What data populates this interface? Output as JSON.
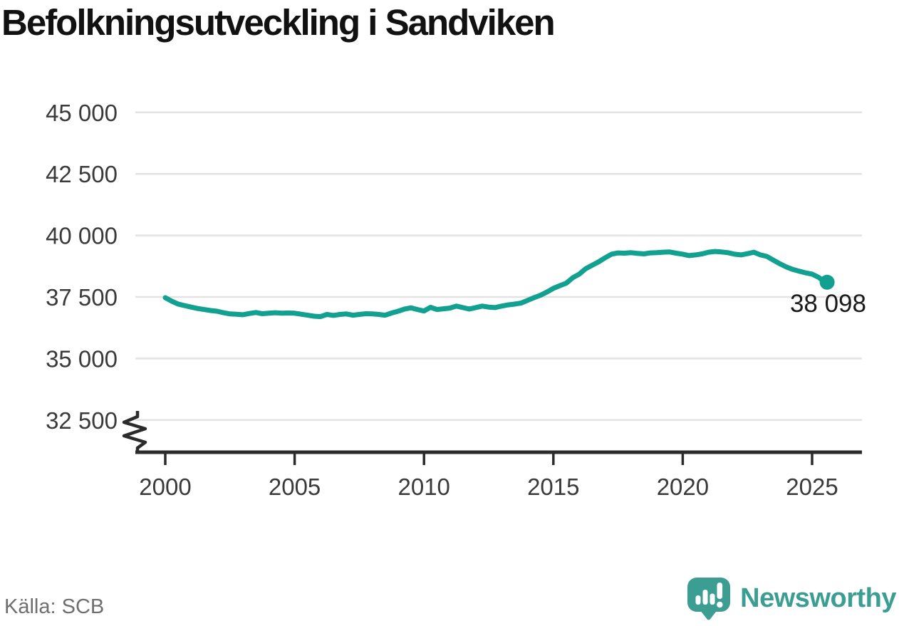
{
  "title": "Befolkningsutveckling i Sandviken",
  "source": "Källa: SCB",
  "logo": {
    "text": "Newsworthy"
  },
  "colors": {
    "line": "#12A091",
    "grid": "#E3E3E3",
    "axis": "#2B2B2B",
    "tick_label": "#3A3A3A",
    "title": "#111111",
    "source": "#6E6E6E",
    "logo": "#3C9D92",
    "end_label": "#1A1A1A"
  },
  "chart_data": {
    "type": "line",
    "title": "Befolkningsutveckling i Sandviken",
    "xlabel": "",
    "ylabel": "",
    "legend_position": "none",
    "grid": "horizontal",
    "y_axis_break": true,
    "x_ticks": [
      {
        "v": 2000,
        "label": "2000"
      },
      {
        "v": 2005,
        "label": "2005"
      },
      {
        "v": 2010,
        "label": "2010"
      },
      {
        "v": 2015,
        "label": "2015"
      },
      {
        "v": 2020,
        "label": "2020"
      },
      {
        "v": 2025,
        "label": "2025"
      }
    ],
    "y_ticks": [
      {
        "v": 45000,
        "label": "45 000"
      },
      {
        "v": 42500,
        "label": "42 500"
      },
      {
        "v": 40000,
        "label": "40 000"
      },
      {
        "v": 37500,
        "label": "37 500"
      },
      {
        "v": 35000,
        "label": "35 000"
      },
      {
        "v": 32500,
        "label": "32 500"
      }
    ],
    "x_range": [
      2000,
      2025.58
    ],
    "y_range_displayed": [
      32500,
      45000
    ],
    "end_label": "38 098",
    "end_value": 38098,
    "series": [
      {
        "name": "Befolkning",
        "points": [
          [
            2000.0,
            37470
          ],
          [
            2000.25,
            37330
          ],
          [
            2000.5,
            37210
          ],
          [
            2000.75,
            37150
          ],
          [
            2001.0,
            37090
          ],
          [
            2001.25,
            37030
          ],
          [
            2001.5,
            36990
          ],
          [
            2001.75,
            36950
          ],
          [
            2002.0,
            36920
          ],
          [
            2002.25,
            36860
          ],
          [
            2002.5,
            36810
          ],
          [
            2002.75,
            36800
          ],
          [
            2003.0,
            36780
          ],
          [
            2003.25,
            36830
          ],
          [
            2003.5,
            36870
          ],
          [
            2003.75,
            36820
          ],
          [
            2004.0,
            36840
          ],
          [
            2004.25,
            36860
          ],
          [
            2004.5,
            36840
          ],
          [
            2004.75,
            36850
          ],
          [
            2005.0,
            36840
          ],
          [
            2005.25,
            36800
          ],
          [
            2005.5,
            36760
          ],
          [
            2005.75,
            36720
          ],
          [
            2006.0,
            36700
          ],
          [
            2006.25,
            36790
          ],
          [
            2006.5,
            36750
          ],
          [
            2006.75,
            36790
          ],
          [
            2007.0,
            36810
          ],
          [
            2007.25,
            36760
          ],
          [
            2007.5,
            36790
          ],
          [
            2007.75,
            36820
          ],
          [
            2008.0,
            36810
          ],
          [
            2008.25,
            36790
          ],
          [
            2008.5,
            36760
          ],
          [
            2008.75,
            36850
          ],
          [
            2009.0,
            36920
          ],
          [
            2009.25,
            37010
          ],
          [
            2009.5,
            37060
          ],
          [
            2009.75,
            36990
          ],
          [
            2010.0,
            36930
          ],
          [
            2010.25,
            37080
          ],
          [
            2010.5,
            36990
          ],
          [
            2010.75,
            37020
          ],
          [
            2011.0,
            37050
          ],
          [
            2011.25,
            37130
          ],
          [
            2011.5,
            37070
          ],
          [
            2011.75,
            37010
          ],
          [
            2012.0,
            37070
          ],
          [
            2012.25,
            37130
          ],
          [
            2012.5,
            37090
          ],
          [
            2012.75,
            37070
          ],
          [
            2013.0,
            37130
          ],
          [
            2013.25,
            37180
          ],
          [
            2013.5,
            37210
          ],
          [
            2013.75,
            37250
          ],
          [
            2014.0,
            37360
          ],
          [
            2014.25,
            37470
          ],
          [
            2014.5,
            37570
          ],
          [
            2014.75,
            37700
          ],
          [
            2015.0,
            37850
          ],
          [
            2015.25,
            37960
          ],
          [
            2015.5,
            38060
          ],
          [
            2015.75,
            38280
          ],
          [
            2016.0,
            38430
          ],
          [
            2016.25,
            38650
          ],
          [
            2016.5,
            38790
          ],
          [
            2016.75,
            38930
          ],
          [
            2017.0,
            39090
          ],
          [
            2017.25,
            39240
          ],
          [
            2017.5,
            39290
          ],
          [
            2017.75,
            39280
          ],
          [
            2018.0,
            39300
          ],
          [
            2018.25,
            39270
          ],
          [
            2018.5,
            39250
          ],
          [
            2018.75,
            39290
          ],
          [
            2019.0,
            39300
          ],
          [
            2019.25,
            39320
          ],
          [
            2019.5,
            39330
          ],
          [
            2019.75,
            39280
          ],
          [
            2020.0,
            39240
          ],
          [
            2020.25,
            39180
          ],
          [
            2020.5,
            39210
          ],
          [
            2020.75,
            39250
          ],
          [
            2021.0,
            39320
          ],
          [
            2021.25,
            39350
          ],
          [
            2021.5,
            39330
          ],
          [
            2021.75,
            39300
          ],
          [
            2022.0,
            39240
          ],
          [
            2022.25,
            39210
          ],
          [
            2022.5,
            39260
          ],
          [
            2022.75,
            39320
          ],
          [
            2023.0,
            39210
          ],
          [
            2023.25,
            39150
          ],
          [
            2023.5,
            39000
          ],
          [
            2023.75,
            38850
          ],
          [
            2024.0,
            38720
          ],
          [
            2024.25,
            38620
          ],
          [
            2024.5,
            38550
          ],
          [
            2024.75,
            38480
          ],
          [
            2025.0,
            38430
          ],
          [
            2025.25,
            38300
          ],
          [
            2025.42,
            38160
          ],
          [
            2025.58,
            38098
          ]
        ]
      }
    ]
  }
}
